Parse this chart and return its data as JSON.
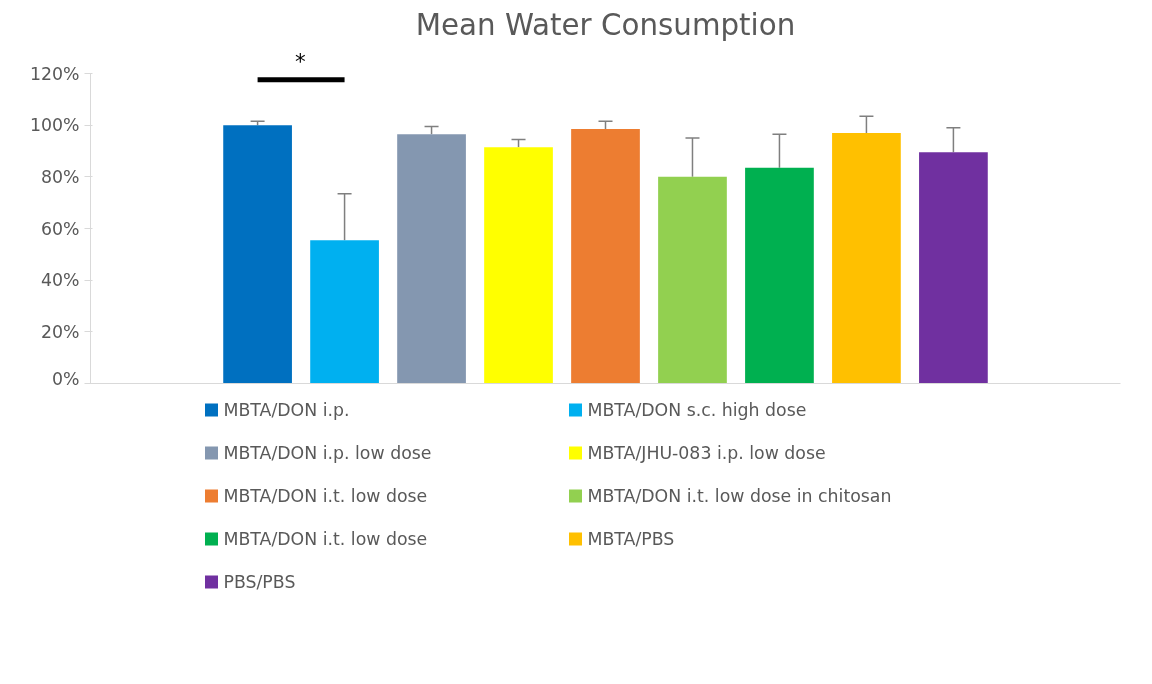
{
  "chart_data": {
    "type": "bar",
    "title": "Mean Water Consumption",
    "categories": [
      null
    ],
    "series": [
      {
        "name": "MBTA/DON i.p.",
        "color": "#0070c0",
        "values": [
          100
        ],
        "errors": [
          [
            100,
            101.5
          ]
        ]
      },
      {
        "name": "MBTA/DON s.c. high dose",
        "color": "#00b0f0",
        "values": [
          55.5
        ],
        "errors": [
          [
            55.5,
            73.5
          ]
        ]
      },
      {
        "name": "MBTA/DON i.p. low dose",
        "color": "#8497b0",
        "values": [
          96.5
        ],
        "errors": [
          [
            96.5,
            99.5
          ]
        ]
      },
      {
        "name": "MBTA/JHU-083 i.p. low dose",
        "color": "#ffff00",
        "values": [
          91.5
        ],
        "errors": [
          [
            91.5,
            94.5
          ]
        ]
      },
      {
        "name": "MBTA/DON i.t. low dose",
        "color": "#ed7d31",
        "values": [
          98.5
        ],
        "errors": [
          [
            98.5,
            101.5
          ]
        ]
      },
      {
        "name": "MBTA/DON i.t. low dose in chitosan",
        "color": "#92d050",
        "values": [
          80
        ],
        "errors": [
          [
            80,
            95
          ]
        ]
      },
      {
        "name": "MBTA/DON i.t. low dose",
        "color": "#00b050",
        "values": [
          83.5
        ],
        "errors": [
          [
            83.5,
            96.5
          ]
        ]
      },
      {
        "name": "MBTA/PBS",
        "color": "#ffc000",
        "values": [
          97
        ],
        "errors": [
          [
            97,
            103.5
          ]
        ]
      },
      {
        "name": "PBS/PBS",
        "color": "#7030a0",
        "values": [
          89.5
        ],
        "errors": [
          [
            89.5,
            99
          ]
        ]
      }
    ],
    "ylim": [
      0,
      120
    ],
    "yticks": [
      {
        "value": 0,
        "label": "0%"
      },
      {
        "value": 20,
        "label": "20%"
      },
      {
        "value": 40,
        "label": "40%"
      },
      {
        "value": 60,
        "label": "60%"
      },
      {
        "value": 80,
        "label": "80%"
      },
      {
        "value": 100,
        "label": "100%"
      },
      {
        "value": 120,
        "label": "120%"
      }
    ],
    "annotations": [
      "*"
    ],
    "legend": "bottom",
    "tick_labels": "y"
  }
}
